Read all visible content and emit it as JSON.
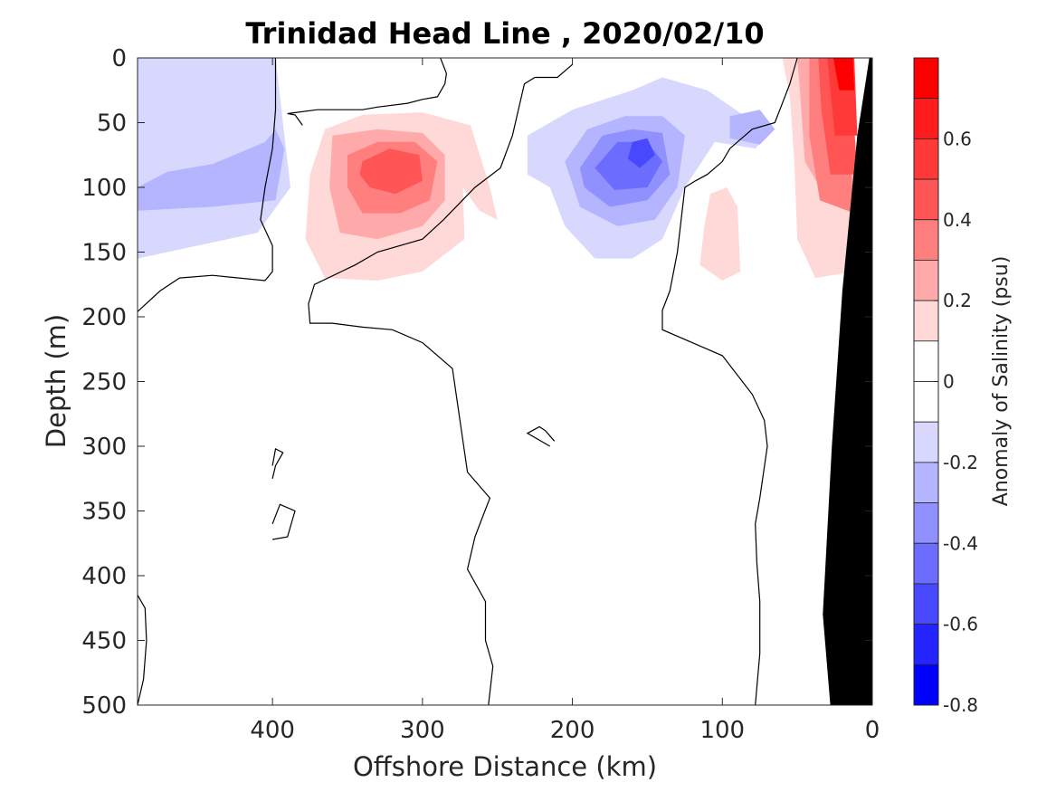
{
  "chart_data": {
    "type": "heatmap",
    "title": "Trinidad Head Line , 2020/02/10",
    "xlabel": "Offshore Distance (km)",
    "ylabel": "Depth (m)",
    "xlim": [
      490,
      0
    ],
    "ylim": [
      0,
      500
    ],
    "x_reversed": true,
    "y_reversed": true,
    "xticks": [
      400,
      300,
      200,
      100,
      0
    ],
    "xtick_labels": [
      "400",
      "300",
      "200",
      "100",
      "0"
    ],
    "yticks": [
      0,
      50,
      100,
      150,
      200,
      250,
      300,
      350,
      400,
      450,
      500
    ],
    "ytick_labels": [
      "0",
      "50",
      "100",
      "150",
      "200",
      "250",
      "300",
      "350",
      "400",
      "450",
      "500"
    ],
    "colorbar": {
      "label": "Anomaly of Salinity (psu)",
      "range": [
        -0.8,
        0.8
      ],
      "ticks": [
        0.6,
        0.4,
        0.2,
        0,
        -0.2,
        -0.4,
        -0.6,
        -0.8
      ],
      "tick_labels": [
        "0.6",
        "0.4",
        "0.2",
        "0",
        "-0.2",
        "-0.4",
        "-0.6",
        "-0.8"
      ],
      "levels": [
        {
          "min": 0.7,
          "max": 0.8,
          "color": "#ff0000"
        },
        {
          "min": 0.6,
          "max": 0.7,
          "color": "#ff1c1c"
        },
        {
          "min": 0.5,
          "max": 0.6,
          "color": "#ff3838"
        },
        {
          "min": 0.4,
          "max": 0.5,
          "color": "#ff5555"
        },
        {
          "min": 0.3,
          "max": 0.4,
          "color": "#ff7f7f"
        },
        {
          "min": 0.2,
          "max": 0.3,
          "color": "#ffaaaa"
        },
        {
          "min": 0.1,
          "max": 0.2,
          "color": "#ffd8d8"
        },
        {
          "min": 0.0,
          "max": 0.1,
          "color": "#ffffff"
        },
        {
          "min": -0.1,
          "max": 0.0,
          "color": "#ffffff"
        },
        {
          "min": -0.2,
          "max": -0.1,
          "color": "#d8d8ff"
        },
        {
          "min": -0.3,
          "max": -0.2,
          "color": "#b4b4ff"
        },
        {
          "min": -0.4,
          "max": -0.3,
          "color": "#9090ff"
        },
        {
          "min": -0.5,
          "max": -0.4,
          "color": "#6c6cff"
        },
        {
          "min": -0.6,
          "max": -0.5,
          "color": "#4848ff"
        },
        {
          "min": -0.7,
          "max": -0.6,
          "color": "#2424ff"
        },
        {
          "min": -0.8,
          "max": -0.7,
          "color": "#0000ff"
        }
      ]
    },
    "anomaly_regions": [
      {
        "level": -0.1,
        "points": [
          [
            490,
            0
          ],
          [
            398,
            0
          ],
          [
            393,
            50
          ],
          [
            388,
            100
          ],
          [
            410,
            135
          ],
          [
            450,
            145
          ],
          [
            490,
            155
          ]
        ]
      },
      {
        "level": -0.2,
        "points": [
          [
            490,
            100
          ],
          [
            470,
            88
          ],
          [
            440,
            82
          ],
          [
            405,
            65
          ],
          [
            398,
            55
          ],
          [
            392,
            70
          ],
          [
            398,
            110
          ],
          [
            440,
            115
          ],
          [
            490,
            118
          ]
        ]
      },
      {
        "level": 0.1,
        "points": [
          [
            365,
            55
          ],
          [
            340,
            44
          ],
          [
            300,
            42
          ],
          [
            268,
            52
          ],
          [
            255,
            100
          ],
          [
            250,
            125
          ],
          [
            262,
            118
          ],
          [
            273,
            100
          ],
          [
            272,
            140
          ],
          [
            300,
            165
          ],
          [
            330,
            172
          ],
          [
            365,
            170
          ],
          [
            378,
            140
          ],
          [
            375,
            90
          ]
        ]
      },
      {
        "level": 0.2,
        "points": [
          [
            360,
            60
          ],
          [
            330,
            55
          ],
          [
            300,
            58
          ],
          [
            285,
            75
          ],
          [
            285,
            110
          ],
          [
            300,
            130
          ],
          [
            330,
            140
          ],
          [
            355,
            135
          ],
          [
            362,
            100
          ]
        ]
      },
      {
        "level": 0.3,
        "points": [
          [
            350,
            75
          ],
          [
            330,
            65
          ],
          [
            305,
            65
          ],
          [
            290,
            80
          ],
          [
            295,
            110
          ],
          [
            315,
            120
          ],
          [
            340,
            120
          ],
          [
            350,
            100
          ]
        ]
      },
      {
        "level": 0.4,
        "points": [
          [
            340,
            80
          ],
          [
            322,
            70
          ],
          [
            302,
            75
          ],
          [
            300,
            95
          ],
          [
            318,
            105
          ],
          [
            335,
            100
          ],
          [
            342,
            90
          ]
        ]
      },
      {
        "level": -0.1,
        "points": [
          [
            230,
            60
          ],
          [
            200,
            40
          ],
          [
            160,
            25
          ],
          [
            140,
            15
          ],
          [
            110,
            25
          ],
          [
            85,
            45
          ],
          [
            70,
            60
          ],
          [
            78,
            70
          ],
          [
            105,
            65
          ],
          [
            125,
            100
          ],
          [
            140,
            140
          ],
          [
            160,
            155
          ],
          [
            185,
            155
          ],
          [
            205,
            130
          ],
          [
            215,
            100
          ],
          [
            230,
            90
          ]
        ]
      },
      {
        "level": -0.2,
        "points": [
          [
            205,
            80
          ],
          [
            190,
            55
          ],
          [
            165,
            45
          ],
          [
            140,
            45
          ],
          [
            125,
            60
          ],
          [
            130,
            100
          ],
          [
            145,
            125
          ],
          [
            170,
            130
          ],
          [
            195,
            115
          ]
        ]
      },
      {
        "level": -0.3,
        "points": [
          [
            195,
            85
          ],
          [
            180,
            60
          ],
          [
            160,
            55
          ],
          [
            140,
            58
          ],
          [
            135,
            90
          ],
          [
            150,
            110
          ],
          [
            175,
            115
          ],
          [
            192,
            100
          ]
        ]
      },
      {
        "level": -0.4,
        "points": [
          [
            185,
            85
          ],
          [
            170,
            65
          ],
          [
            150,
            65
          ],
          [
            140,
            80
          ],
          [
            150,
            100
          ],
          [
            172,
            102
          ]
        ]
      },
      {
        "level": -0.5,
        "points": [
          [
            160,
            65
          ],
          [
            150,
            62
          ],
          [
            145,
            75
          ],
          [
            155,
            85
          ],
          [
            163,
            78
          ]
        ]
      },
      {
        "level": -0.2,
        "points": [
          [
            95,
            45
          ],
          [
            75,
            40
          ],
          [
            65,
            55
          ],
          [
            75,
            67
          ],
          [
            95,
            62
          ]
        ]
      },
      {
        "level": 0.1,
        "points": [
          [
            108,
            105
          ],
          [
            97,
            100
          ],
          [
            90,
            115
          ],
          [
            88,
            165
          ],
          [
            100,
            172
          ],
          [
            115,
            160
          ],
          [
            112,
            130
          ]
        ]
      },
      {
        "level": 0.1,
        "points": [
          [
            60,
            0
          ],
          [
            30,
            0
          ],
          [
            12,
            0
          ],
          [
            12,
            165
          ],
          [
            38,
            170
          ],
          [
            50,
            140
          ],
          [
            52,
            80
          ],
          [
            55,
            30
          ]
        ]
      },
      {
        "level": 0.2,
        "points": [
          [
            50,
            0
          ],
          [
            20,
            0
          ],
          [
            12,
            100
          ],
          [
            30,
            110
          ],
          [
            45,
            80
          ],
          [
            48,
            30
          ]
        ]
      },
      {
        "level": 0.3,
        "points": [
          [
            42,
            0
          ],
          [
            20,
            0
          ],
          [
            12,
            120
          ],
          [
            35,
            110
          ],
          [
            42,
            60
          ]
        ]
      },
      {
        "level": 0.4,
        "points": [
          [
            36,
            0
          ],
          [
            15,
            0
          ],
          [
            10,
            90
          ],
          [
            28,
            90
          ],
          [
            34,
            40
          ]
        ]
      },
      {
        "level": 0.5,
        "points": [
          [
            30,
            0
          ],
          [
            12,
            0
          ],
          [
            10,
            60
          ],
          [
            25,
            60
          ]
        ]
      },
      {
        "level": 0.7,
        "points": [
          [
            26,
            0
          ],
          [
            13,
            0
          ],
          [
            12,
            25
          ],
          [
            22,
            25
          ]
        ]
      }
    ],
    "zero_contours": [
      [
        [
          490,
          196
        ],
        [
          475,
          180
        ],
        [
          462,
          170
        ],
        [
          440,
          168
        ],
        [
          405,
          172
        ],
        [
          400,
          165
        ],
        [
          400,
          145
        ],
        [
          408,
          125
        ],
        [
          405,
          100
        ],
        [
          400,
          70
        ],
        [
          398,
          40
        ],
        [
          398,
          0
        ]
      ],
      [
        [
          380,
          52
        ],
        [
          385,
          44
        ],
        [
          390,
          43
        ],
        [
          370,
          40
        ],
        [
          340,
          40
        ],
        [
          330,
          38
        ],
        [
          310,
          35
        ],
        [
          300,
          32
        ],
        [
          290,
          30
        ],
        [
          285,
          20
        ],
        [
          284,
          12
        ],
        [
          288,
          0
        ]
      ],
      [
        [
          256,
          500
        ],
        [
          253,
          470
        ],
        [
          258,
          450
        ],
        [
          258,
          420
        ],
        [
          270,
          395
        ],
        [
          265,
          370
        ],
        [
          260,
          355
        ],
        [
          255,
          340
        ],
        [
          270,
          320
        ],
        [
          275,
          280
        ],
        [
          280,
          240
        ],
        [
          300,
          220
        ],
        [
          320,
          210
        ],
        [
          340,
          208
        ],
        [
          360,
          205
        ],
        [
          375,
          205
        ],
        [
          376,
          190
        ],
        [
          372,
          175
        ],
        [
          345,
          160
        ],
        [
          330,
          150
        ],
        [
          300,
          140
        ],
        [
          286,
          125
        ],
        [
          265,
          100
        ],
        [
          248,
          85
        ],
        [
          240,
          60
        ],
        [
          232,
          20
        ],
        [
          225,
          15
        ],
        [
          210,
          15
        ],
        [
          200,
          5
        ]
      ],
      [
        [
          78,
          500
        ],
        [
          75,
          460
        ],
        [
          75,
          420
        ],
        [
          77,
          390
        ],
        [
          78,
          360
        ],
        [
          75,
          340
        ],
        [
          70,
          300
        ],
        [
          72,
          280
        ],
        [
          80,
          260
        ],
        [
          100,
          230
        ],
        [
          120,
          220
        ],
        [
          140,
          210
        ],
        [
          140,
          195
        ],
        [
          135,
          180
        ],
        [
          130,
          150
        ],
        [
          125,
          100
        ],
        [
          118,
          95
        ],
        [
          110,
          90
        ],
        [
          100,
          80
        ],
        [
          95,
          70
        ],
        [
          80,
          55
        ],
        [
          65,
          50
        ],
        [
          55,
          20
        ],
        [
          50,
          0
        ]
      ],
      [
        [
          490,
          415
        ],
        [
          485,
          425
        ],
        [
          484,
          450
        ],
        [
          486,
          480
        ],
        [
          490,
          500
        ]
      ],
      [
        [
          400,
          325
        ],
        [
          398,
          315
        ],
        [
          393,
          305
        ],
        [
          398,
          302
        ],
        [
          400,
          315
        ]
      ],
      [
        [
          400,
          360
        ],
        [
          395,
          345
        ],
        [
          385,
          350
        ],
        [
          390,
          370
        ],
        [
          400,
          372
        ]
      ],
      [
        [
          212,
          296
        ],
        [
          218,
          288
        ],
        [
          222,
          285
        ],
        [
          230,
          290
        ],
        [
          215,
          300
        ]
      ]
    ],
    "landmass": [
      [
        28,
        500
      ],
      [
        15,
        500
      ],
      [
        0,
        500
      ],
      [
        0,
        0
      ],
      [
        2,
        0
      ],
      [
        10,
        60
      ],
      [
        20,
        180
      ],
      [
        27,
        300
      ],
      [
        33,
        430
      ]
    ]
  }
}
